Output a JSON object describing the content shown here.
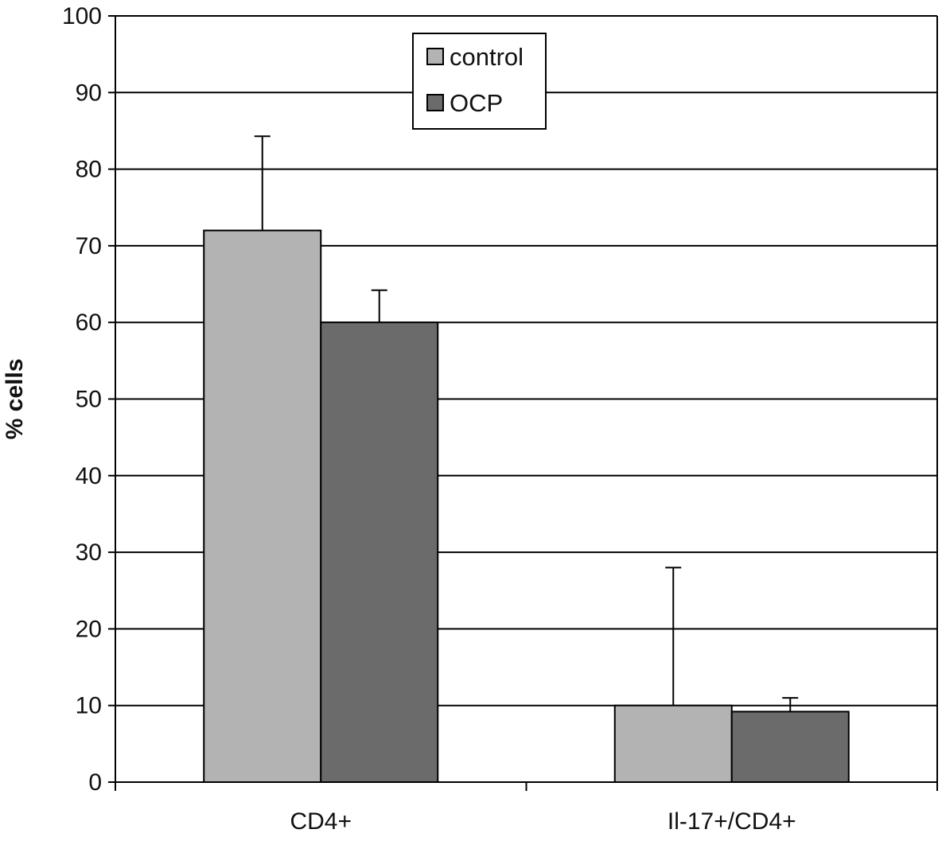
{
  "chart_data": {
    "type": "bar",
    "categories": [
      "CD4+",
      "Il-17+/CD4+"
    ],
    "series": [
      {
        "name": "control",
        "values": [
          72,
          10
        ],
        "errors": [
          12.3,
          18
        ],
        "color": "#b3b3b3"
      },
      {
        "name": "OCP",
        "values": [
          60,
          9.2
        ],
        "errors": [
          4.2,
          1.8
        ],
        "color": "#6b6b6b"
      }
    ],
    "title": "",
    "xlabel": "",
    "ylabel": "% cells",
    "ylim": [
      0,
      100
    ],
    "yticks": [
      0,
      10,
      20,
      30,
      40,
      50,
      60,
      70,
      80,
      90,
      100
    ],
    "grid": true,
    "legend": "top-center"
  }
}
